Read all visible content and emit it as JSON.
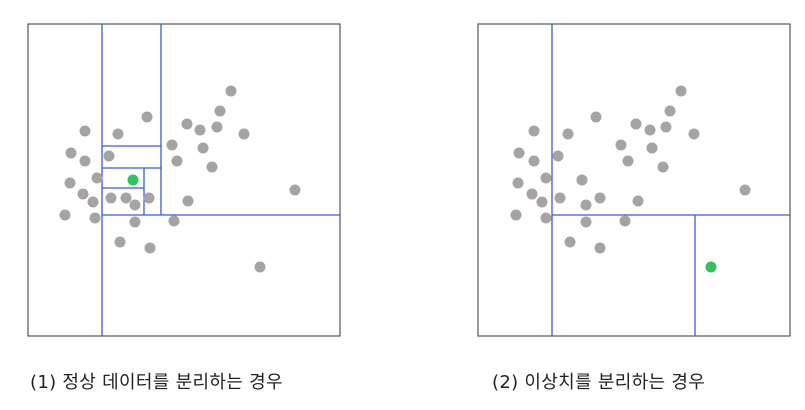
{
  "colors": {
    "border": "#555555",
    "split": "#3b5bdb",
    "normal_point": "#a8a3a3",
    "target_point": "#2fc35a",
    "caption": "#222222"
  },
  "panels": [
    {
      "caption": "(1) 정상 데이터를 분리하는 경우",
      "target_icon": "green-dot",
      "points": [
        [
          85,
          131
        ],
        [
          118,
          134
        ],
        [
          147,
          117
        ],
        [
          187,
          124
        ],
        [
          200,
          130
        ],
        [
          217,
          127
        ],
        [
          220,
          111
        ],
        [
          231,
          91
        ],
        [
          244,
          134
        ],
        [
          172,
          145
        ],
        [
          203,
          148
        ],
        [
          71,
          153
        ],
        [
          85,
          161
        ],
        [
          109,
          156
        ],
        [
          177,
          161
        ],
        [
          212,
          167
        ],
        [
          70,
          183
        ],
        [
          83,
          194
        ],
        [
          93,
          202
        ],
        [
          97,
          178
        ],
        [
          111,
          198
        ],
        [
          126,
          198
        ],
        [
          149,
          198
        ],
        [
          135,
          205
        ],
        [
          188,
          201
        ],
        [
          65,
          215
        ],
        [
          95,
          218
        ],
        [
          135,
          222
        ],
        [
          174,
          221
        ],
        [
          120,
          242
        ],
        [
          150,
          248
        ],
        [
          295,
          190
        ],
        [
          260,
          267
        ]
      ],
      "target": [
        133,
        180
      ]
    },
    {
      "caption": "(2) 이상치를 분리하는 경우",
      "target_icon": "green-dot",
      "points": [
        [
          534,
          131
        ],
        [
          568,
          134
        ],
        [
          596,
          117
        ],
        [
          636,
          124
        ],
        [
          650,
          130
        ],
        [
          666,
          127
        ],
        [
          670,
          111
        ],
        [
          681,
          91
        ],
        [
          694,
          134
        ],
        [
          621,
          145
        ],
        [
          652,
          148
        ],
        [
          519,
          153
        ],
        [
          534,
          161
        ],
        [
          558,
          156
        ],
        [
          628,
          161
        ],
        [
          663,
          167
        ],
        [
          518,
          183
        ],
        [
          532,
          194
        ],
        [
          542,
          202
        ],
        [
          546,
          178
        ],
        [
          560,
          198
        ],
        [
          582,
          180
        ],
        [
          600,
          198
        ],
        [
          586,
          205
        ],
        [
          638,
          201
        ],
        [
          516,
          215
        ],
        [
          546,
          218
        ],
        [
          586,
          222
        ],
        [
          625,
          221
        ],
        [
          570,
          242
        ],
        [
          600,
          248
        ],
        [
          745,
          190
        ]
      ],
      "target": [
        711,
        267
      ]
    }
  ]
}
